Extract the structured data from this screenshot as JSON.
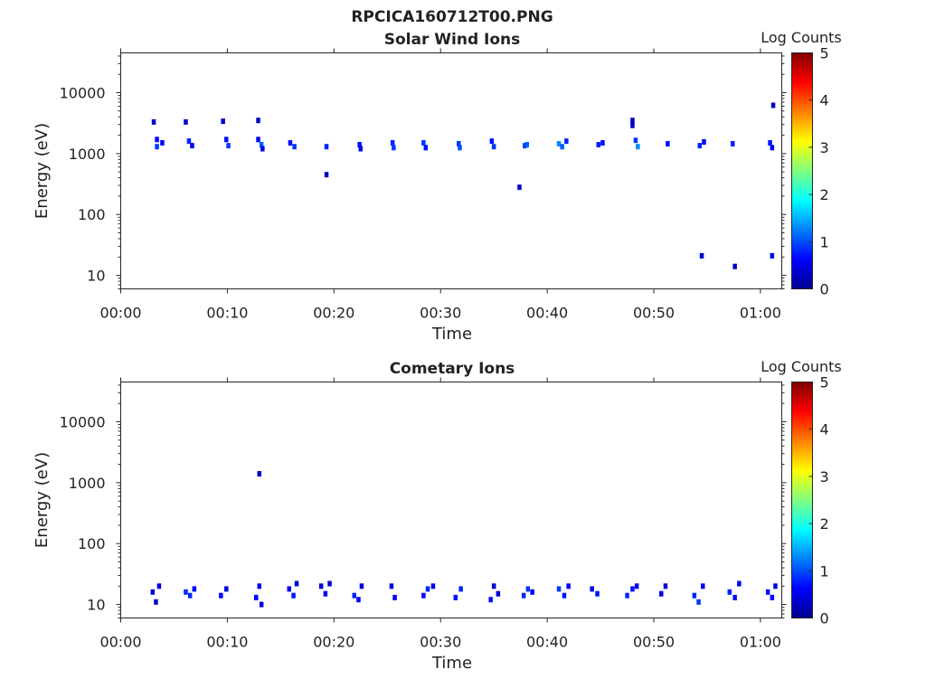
{
  "figure": {
    "title": "RPCICA160712T00.PNG"
  },
  "colorbar": {
    "title": "Log Counts",
    "ticks": [
      "0",
      "1",
      "2",
      "3",
      "4",
      "5"
    ],
    "range": [
      0,
      5
    ],
    "colormap": "jet",
    "colors": [
      "#00008f",
      "#0000ff",
      "#0080ff",
      "#00ffff",
      "#80ff80",
      "#ffff00",
      "#ff8000",
      "#ff0000",
      "#800000"
    ]
  },
  "chart_data": [
    {
      "type": "heatmap",
      "title": "Solar Wind Ions",
      "xlabel": "Time",
      "ylabel": "Energy (eV)",
      "xticks": [
        "00:00",
        "00:10",
        "00:20",
        "00:30",
        "00:40",
        "00:50",
        "01:00"
      ],
      "yticks": [
        "10",
        "100",
        "1000",
        "10000"
      ],
      "xlim_minutes": [
        0,
        62
      ],
      "ylim_eV": [
        6,
        45000
      ],
      "yscale": "log",
      "grid": false,
      "cells": [
        {
          "t": 3.1,
          "e": 3300,
          "c": 0.3
        },
        {
          "t": 6.1,
          "e": 3300,
          "c": 0.3
        },
        {
          "t": 9.6,
          "e": 3400,
          "c": 0.3
        },
        {
          "t": 12.9,
          "e": 3500,
          "c": 0.3
        },
        {
          "t": 48.0,
          "e": 3500,
          "c": 0.3
        },
        {
          "t": 48.0,
          "e": 2900,
          "c": 0.3
        },
        {
          "t": 61.2,
          "e": 6200,
          "c": 0.3
        },
        {
          "t": 3.4,
          "e": 1700,
          "c": 0.6
        },
        {
          "t": 3.4,
          "e": 1300,
          "c": 0.9
        },
        {
          "t": 3.9,
          "e": 1500,
          "c": 0.6
        },
        {
          "t": 6.4,
          "e": 1600,
          "c": 0.8
        },
        {
          "t": 6.7,
          "e": 1350,
          "c": 0.6
        },
        {
          "t": 9.9,
          "e": 1700,
          "c": 0.7
        },
        {
          "t": 10.1,
          "e": 1350,
          "c": 0.9
        },
        {
          "t": 12.9,
          "e": 1700,
          "c": 0.6
        },
        {
          "t": 13.2,
          "e": 1400,
          "c": 1.1
        },
        {
          "t": 13.3,
          "e": 1200,
          "c": 0.5
        },
        {
          "t": 15.9,
          "e": 1500,
          "c": 0.7
        },
        {
          "t": 16.3,
          "e": 1300,
          "c": 0.9
        },
        {
          "t": 19.3,
          "e": 1300,
          "c": 0.8
        },
        {
          "t": 19.3,
          "e": 450,
          "c": 0.3
        },
        {
          "t": 22.4,
          "e": 1400,
          "c": 0.7
        },
        {
          "t": 22.5,
          "e": 1200,
          "c": 0.5
        },
        {
          "t": 25.5,
          "e": 1500,
          "c": 0.8
        },
        {
          "t": 25.6,
          "e": 1250,
          "c": 0.9
        },
        {
          "t": 28.4,
          "e": 1500,
          "c": 0.9
        },
        {
          "t": 28.6,
          "e": 1250,
          "c": 0.7
        },
        {
          "t": 31.7,
          "e": 1450,
          "c": 0.9
        },
        {
          "t": 31.8,
          "e": 1250,
          "c": 1.0
        },
        {
          "t": 34.8,
          "e": 1600,
          "c": 0.7
        },
        {
          "t": 35.0,
          "e": 1300,
          "c": 0.9
        },
        {
          "t": 37.4,
          "e": 280,
          "c": 0.3
        },
        {
          "t": 37.9,
          "e": 1350,
          "c": 0.9
        },
        {
          "t": 38.1,
          "e": 1400,
          "c": 1.1
        },
        {
          "t": 41.1,
          "e": 1450,
          "c": 1.3
        },
        {
          "t": 41.4,
          "e": 1300,
          "c": 1.1
        },
        {
          "t": 41.8,
          "e": 1600,
          "c": 0.8
        },
        {
          "t": 44.8,
          "e": 1400,
          "c": 0.8
        },
        {
          "t": 45.2,
          "e": 1500,
          "c": 0.7
        },
        {
          "t": 48.3,
          "e": 1650,
          "c": 0.9
        },
        {
          "t": 48.5,
          "e": 1300,
          "c": 1.3
        },
        {
          "t": 51.3,
          "e": 1450,
          "c": 0.7
        },
        {
          "t": 54.3,
          "e": 1350,
          "c": 0.8
        },
        {
          "t": 54.7,
          "e": 1550,
          "c": 0.6
        },
        {
          "t": 54.5,
          "e": 21,
          "c": 0.4
        },
        {
          "t": 57.4,
          "e": 1450,
          "c": 0.8
        },
        {
          "t": 57.6,
          "e": 14,
          "c": 0.3
        },
        {
          "t": 60.9,
          "e": 1500,
          "c": 0.7
        },
        {
          "t": 61.1,
          "e": 1250,
          "c": 0.5
        },
        {
          "t": 61.1,
          "e": 21,
          "c": 0.4
        }
      ]
    },
    {
      "type": "heatmap",
      "title": "Cometary Ions",
      "xlabel": "Time",
      "ylabel": "Energy (eV)",
      "xticks": [
        "00:00",
        "00:10",
        "00:20",
        "00:30",
        "00:40",
        "00:50",
        "01:00"
      ],
      "yticks": [
        "10",
        "100",
        "1000",
        "10000"
      ],
      "xlim_minutes": [
        0,
        62
      ],
      "ylim_eV": [
        6,
        45000
      ],
      "yscale": "log",
      "grid": false,
      "cells": [
        {
          "t": 13.0,
          "e": 1400,
          "c": 0.3
        },
        {
          "t": 3.0,
          "e": 16,
          "c": 0.4
        },
        {
          "t": 3.3,
          "e": 11,
          "c": 0.3
        },
        {
          "t": 3.6,
          "e": 20,
          "c": 0.4
        },
        {
          "t": 6.1,
          "e": 16,
          "c": 0.8
        },
        {
          "t": 6.5,
          "e": 14,
          "c": 0.8
        },
        {
          "t": 6.9,
          "e": 18,
          "c": 0.6
        },
        {
          "t": 9.4,
          "e": 14,
          "c": 0.6
        },
        {
          "t": 9.9,
          "e": 18,
          "c": 0.5
        },
        {
          "t": 12.7,
          "e": 13,
          "c": 0.6
        },
        {
          "t": 13.0,
          "e": 20,
          "c": 0.5
        },
        {
          "t": 13.2,
          "e": 10,
          "c": 0.4
        },
        {
          "t": 15.8,
          "e": 18,
          "c": 0.5
        },
        {
          "t": 16.2,
          "e": 14,
          "c": 0.7
        },
        {
          "t": 16.5,
          "e": 22,
          "c": 0.4
        },
        {
          "t": 18.8,
          "e": 20,
          "c": 0.4
        },
        {
          "t": 19.2,
          "e": 15,
          "c": 0.6
        },
        {
          "t": 19.6,
          "e": 22,
          "c": 0.4
        },
        {
          "t": 21.9,
          "e": 14,
          "c": 0.8
        },
        {
          "t": 22.3,
          "e": 12,
          "c": 0.6
        },
        {
          "t": 22.6,
          "e": 20,
          "c": 0.4
        },
        {
          "t": 25.4,
          "e": 20,
          "c": 0.4
        },
        {
          "t": 25.7,
          "e": 13,
          "c": 0.6
        },
        {
          "t": 28.4,
          "e": 14,
          "c": 0.6
        },
        {
          "t": 28.8,
          "e": 18,
          "c": 0.8
        },
        {
          "t": 29.3,
          "e": 20,
          "c": 0.5
        },
        {
          "t": 31.4,
          "e": 13,
          "c": 0.7
        },
        {
          "t": 31.9,
          "e": 18,
          "c": 0.8
        },
        {
          "t": 34.7,
          "e": 12,
          "c": 0.7
        },
        {
          "t": 35.0,
          "e": 20,
          "c": 0.4
        },
        {
          "t": 35.4,
          "e": 15,
          "c": 0.4
        },
        {
          "t": 37.8,
          "e": 14,
          "c": 0.8
        },
        {
          "t": 38.2,
          "e": 18,
          "c": 0.9
        },
        {
          "t": 38.6,
          "e": 16,
          "c": 0.6
        },
        {
          "t": 41.1,
          "e": 18,
          "c": 0.9
        },
        {
          "t": 41.6,
          "e": 14,
          "c": 0.7
        },
        {
          "t": 42.0,
          "e": 20,
          "c": 0.6
        },
        {
          "t": 44.2,
          "e": 18,
          "c": 0.5
        },
        {
          "t": 44.7,
          "e": 15,
          "c": 0.7
        },
        {
          "t": 47.5,
          "e": 14,
          "c": 0.8
        },
        {
          "t": 48.0,
          "e": 18,
          "c": 0.7
        },
        {
          "t": 48.4,
          "e": 20,
          "c": 0.5
        },
        {
          "t": 50.7,
          "e": 15,
          "c": 0.5
        },
        {
          "t": 51.1,
          "e": 20,
          "c": 0.4
        },
        {
          "t": 53.8,
          "e": 14,
          "c": 0.8
        },
        {
          "t": 54.2,
          "e": 11,
          "c": 0.9
        },
        {
          "t": 54.6,
          "e": 20,
          "c": 0.6
        },
        {
          "t": 57.1,
          "e": 16,
          "c": 0.8
        },
        {
          "t": 57.6,
          "e": 13,
          "c": 0.7
        },
        {
          "t": 58.0,
          "e": 22,
          "c": 0.6
        },
        {
          "t": 60.7,
          "e": 16,
          "c": 0.7
        },
        {
          "t": 61.1,
          "e": 13,
          "c": 0.6
        },
        {
          "t": 61.4,
          "e": 20,
          "c": 0.5
        }
      ]
    }
  ]
}
